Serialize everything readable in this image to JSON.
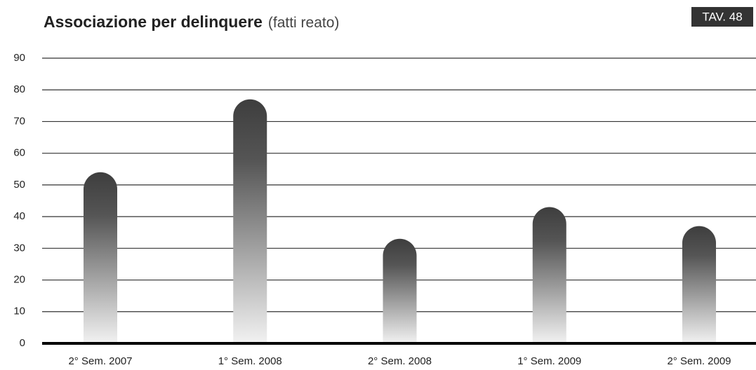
{
  "chart_data": {
    "type": "bar",
    "title": "Associazione per delinquere",
    "subtitle": "(fatti reato)",
    "annotation": "TAV. 48",
    "categories": [
      "2° Sem. 2007",
      "1° Sem. 2008",
      "2° Sem. 2008",
      "1° Sem. 2009",
      "2° Sem. 2009"
    ],
    "values": [
      54,
      77,
      33,
      43,
      37
    ],
    "color": "#444444",
    "ylim": [
      0,
      90
    ],
    "yticks": [
      0,
      10,
      20,
      30,
      40,
      50,
      60,
      70,
      80,
      90
    ],
    "grid": true
  }
}
